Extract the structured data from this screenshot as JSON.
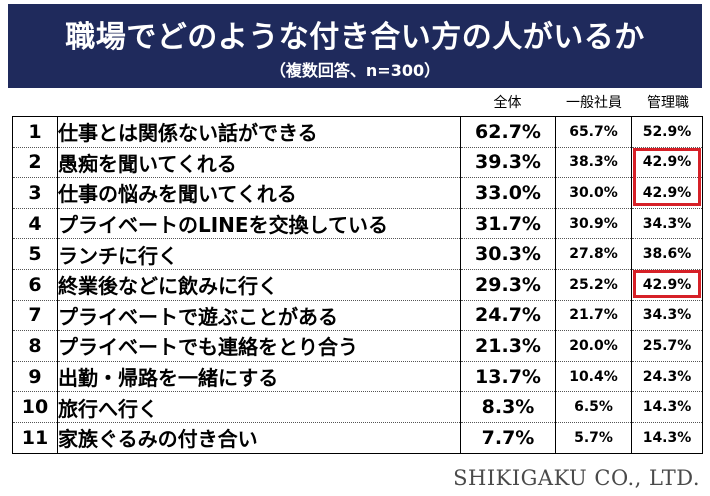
{
  "chart_data": {
    "type": "table",
    "title": "職場でどのような付き合い方の人がいるか",
    "subtitle": "（複数回答、n=300）",
    "columns": [
      "全体",
      "一般社員",
      "管理職"
    ],
    "rows": [
      {
        "no": "1",
        "item": "仕事とは関係ない話ができる",
        "total": "62.7%",
        "staff": "65.7%",
        "manager": "52.9%"
      },
      {
        "no": "2",
        "item": "愚痴を聞いてくれる",
        "total": "39.3%",
        "staff": "38.3%",
        "manager": "42.9%"
      },
      {
        "no": "3",
        "item": "仕事の悩みを聞いてくれる",
        "total": "33.0%",
        "staff": "30.0%",
        "manager": "42.9%"
      },
      {
        "no": "4",
        "item": "プライベートのLINEを交換している",
        "total": "31.7%",
        "staff": "30.9%",
        "manager": "34.3%"
      },
      {
        "no": "5",
        "item": "ランチに行く",
        "total": "30.3%",
        "staff": "27.8%",
        "manager": "38.6%"
      },
      {
        "no": "6",
        "item": "終業後などに飲みに行く",
        "total": "29.3%",
        "staff": "25.2%",
        "manager": "42.9%"
      },
      {
        "no": "7",
        "item": "プライベートで遊ぶことがある",
        "total": "24.7%",
        "staff": "21.7%",
        "manager": "34.3%"
      },
      {
        "no": "8",
        "item": "プライベートでも連絡をとり合う",
        "total": "21.3%",
        "staff": "20.0%",
        "manager": "25.7%"
      },
      {
        "no": "9",
        "item": "出勤・帰路を一緒にする",
        "total": "13.7%",
        "staff": "10.4%",
        "manager": "24.3%"
      },
      {
        "no": "10",
        "item": "旅行へ行く",
        "total": "8.3%",
        "staff": "6.5%",
        "manager": "14.3%"
      },
      {
        "no": "11",
        "item": "家族ぐるみの付き合い",
        "total": "7.7%",
        "staff": "5.7%",
        "manager": "14.3%"
      }
    ],
    "highlighted_cells": [
      {
        "row": "2",
        "column": "管理職"
      },
      {
        "row": "3",
        "column": "管理職"
      },
      {
        "row": "6",
        "column": "管理職"
      }
    ]
  },
  "footer": {
    "company": "SHIKIGAKU CO., LTD."
  },
  "colors": {
    "header_bg": "#1f2a5c",
    "header_text": "#ffffff",
    "highlight": "#d62027",
    "footer_text": "#4a4a4a"
  }
}
